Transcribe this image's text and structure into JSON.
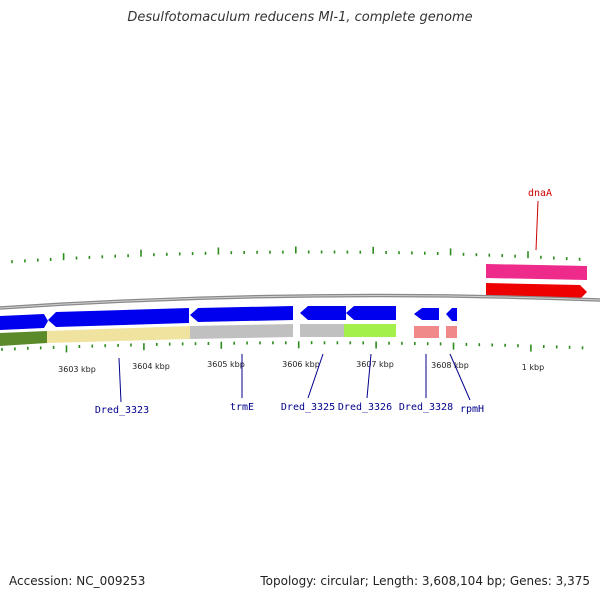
{
  "title": "Desulfotomaculum reducens MI-1, complete genome",
  "footer": {
    "accession": "Accession: NC_009253",
    "summary": "Topology: circular; Length: 3,608,104 bp; Genes: 3,375"
  },
  "colors": {
    "tick": "#2e8b1e",
    "backbone": "#808080",
    "forward_cds": "#0000ee",
    "reverse_cds": "#ee0000",
    "highlight_cds": "#ee2a8a",
    "gene_label": "#00008b",
    "highlight_label": "#cc0000"
  },
  "scale_labels": [
    "3603 kbp",
    "3604 kbp",
    "3605 kbp",
    "3606 kbp",
    "3607 kbp",
    "3608 kbp",
    "1 kbp"
  ],
  "gene_labels": [
    {
      "id": "dred-3323",
      "text": "Dred_3323"
    },
    {
      "id": "trme",
      "text": "trmE"
    },
    {
      "id": "dred-3325",
      "text": "Dred_3325"
    },
    {
      "id": "dred-3326",
      "text": "Dred_3326"
    },
    {
      "id": "dred-3328",
      "text": "Dred_3328"
    },
    {
      "id": "rpmh",
      "text": "rpmH"
    },
    {
      "id": "dnaa",
      "text": "dnaA"
    }
  ]
}
